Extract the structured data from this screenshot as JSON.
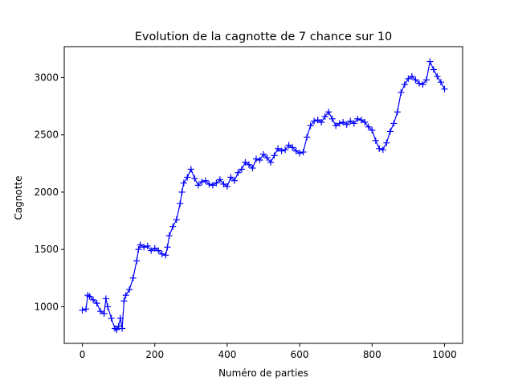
{
  "chart_data": {
    "type": "line",
    "title": "Evolution de la cagnotte de 7 chance sur 10",
    "xlabel": "Numéro de parties",
    "ylabel": "Cagnotte",
    "xlim": [
      -50,
      1050
    ],
    "ylim": [
      680,
      3270
    ],
    "xticks": [
      0,
      200,
      400,
      600,
      800,
      1000
    ],
    "yticks": [
      1000,
      1500,
      2000,
      2500,
      3000
    ],
    "marker": "+",
    "line_color": "#0000ff",
    "grid": false,
    "series": [
      {
        "x": [
          0,
          10,
          15,
          20,
          30,
          40,
          50,
          60,
          65,
          70,
          80,
          90,
          95,
          100,
          105,
          110,
          115,
          120,
          130,
          140,
          150,
          155,
          160,
          170,
          180,
          190,
          200,
          210,
          220,
          230,
          235,
          240,
          250,
          260,
          270,
          275,
          280,
          290,
          300,
          310,
          320,
          330,
          340,
          350,
          360,
          370,
          380,
          390,
          400,
          410,
          420,
          430,
          440,
          450,
          460,
          470,
          480,
          490,
          500,
          510,
          520,
          530,
          540,
          550,
          560,
          570,
          580,
          590,
          600,
          610,
          620,
          630,
          640,
          650,
          660,
          670,
          680,
          690,
          700,
          710,
          720,
          730,
          740,
          750,
          760,
          770,
          780,
          790,
          800,
          810,
          820,
          830,
          840,
          850,
          860,
          870,
          880,
          890,
          900,
          910,
          920,
          930,
          940,
          950,
          960,
          970,
          980,
          990,
          1000
        ],
        "values": [
          970,
          980,
          1100,
          1090,
          1060,
          1030,
          960,
          940,
          1070,
          1000,
          900,
          810,
          800,
          830,
          900,
          810,
          1050,
          1100,
          1150,
          1250,
          1400,
          1500,
          1540,
          1520,
          1530,
          1490,
          1510,
          1490,
          1460,
          1450,
          1520,
          1620,
          1700,
          1760,
          1900,
          2000,
          2080,
          2130,
          2200,
          2120,
          2060,
          2090,
          2100,
          2070,
          2060,
          2080,
          2110,
          2070,
          2050,
          2130,
          2100,
          2170,
          2200,
          2260,
          2240,
          2210,
          2290,
          2280,
          2330,
          2300,
          2260,
          2320,
          2380,
          2360,
          2370,
          2410,
          2390,
          2360,
          2340,
          2350,
          2480,
          2580,
          2620,
          2630,
          2610,
          2660,
          2700,
          2640,
          2580,
          2600,
          2610,
          2590,
          2620,
          2600,
          2640,
          2630,
          2610,
          2570,
          2540,
          2450,
          2380,
          2370,
          2430,
          2530,
          2600,
          2700,
          2870,
          2940,
          2990,
          3010,
          2980,
          2950,
          2940,
          2980,
          3140,
          3070,
          3010,
          2960,
          2900
        ]
      }
    ]
  }
}
